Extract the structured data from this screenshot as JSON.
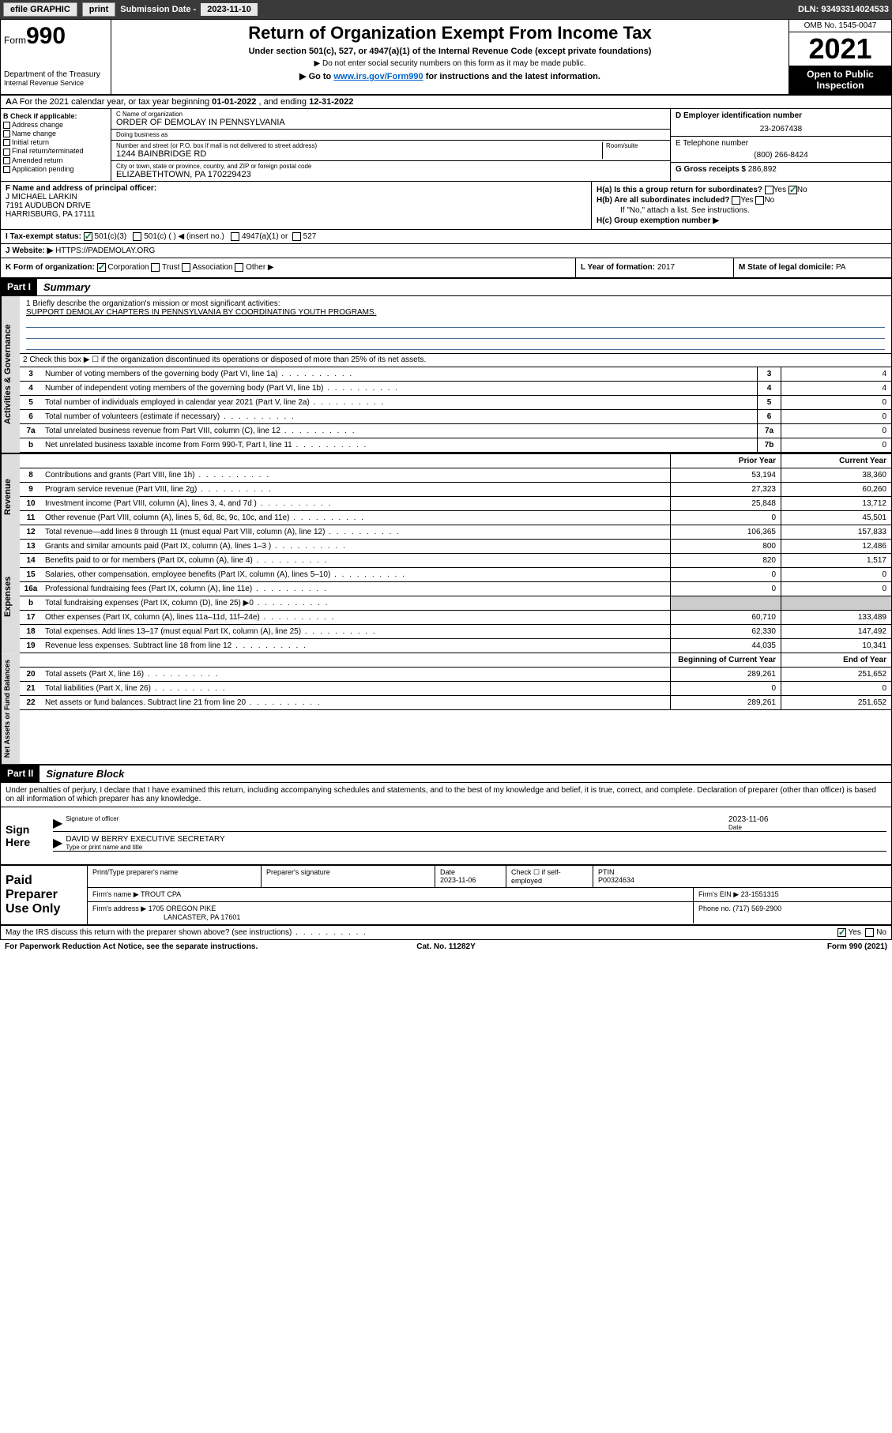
{
  "topbar": {
    "efile": "efile GRAPHIC",
    "print": "print",
    "subdate_label": "Submission Date - ",
    "subdate": "2023-11-10",
    "dln": "DLN: 93493314024533"
  },
  "header": {
    "form_prefix": "Form",
    "form_num": "990",
    "dept": "Department of the Treasury",
    "irs": "Internal Revenue Service",
    "title": "Return of Organization Exempt From Income Tax",
    "subtitle": "Under section 501(c), 527, or 4947(a)(1) of the Internal Revenue Code (except private foundations)",
    "note1": "▶ Do not enter social security numbers on this form as it may be made public.",
    "note2_pre": "▶ Go to ",
    "note2_link": "www.irs.gov/Form990",
    "note2_post": " for instructions and the latest information.",
    "omb": "OMB No. 1545-0047",
    "year": "2021",
    "open": "Open to Public Inspection"
  },
  "row_a": {
    "prefix": "A For the 2021 calendar year, or tax year beginning ",
    "begin": "01-01-2022",
    "mid": " , and ending ",
    "end": "12-31-2022"
  },
  "col_b": {
    "hdr": "B Check if applicable:",
    "items": [
      "Address change",
      "Name change",
      "Initial return",
      "Final return/terminated",
      "Amended return",
      "Application pending"
    ]
  },
  "col_c": {
    "name_label": "C Name of organization",
    "name": "ORDER OF DEMOLAY IN PENNSYLVANIA",
    "dba_label": "Doing business as",
    "dba": "",
    "addr_label": "Number and street (or P.O. box if mail is not delivered to street address)",
    "room_label": "Room/suite",
    "addr": "1244 BAINBRIDGE RD",
    "city_label": "City or town, state or province, country, and ZIP or foreign postal code",
    "city": "ELIZABETHTOWN, PA  170229423"
  },
  "col_de": {
    "d_label": "D Employer identification number",
    "d_val": "23-2067438",
    "e_label": "E Telephone number",
    "e_val": "(800) 266-8424",
    "g_label": "G Gross receipts $ ",
    "g_val": "286,892"
  },
  "col_f": {
    "label": "F Name and address of principal officer:",
    "name": "J MICHAEL LARKIN",
    "addr1": "7191 AUDUBON DRIVE",
    "addr2": "HARRISBURG, PA  17111"
  },
  "col_h": {
    "a_label": "H(a)  Is this a group return for subordinates?",
    "a_yes": "Yes",
    "a_no": "No",
    "b_label": "H(b)  Are all subordinates included?",
    "b_yes": "Yes",
    "b_no": "No",
    "b_note": "If \"No,\" attach a list. See instructions.",
    "c_label": "H(c)  Group exemption number ▶"
  },
  "row_i": {
    "label": "I    Tax-exempt status:",
    "o1": "501(c)(3)",
    "o2": "501(c) (  ) ◀ (insert no.)",
    "o3": "4947(a)(1) or",
    "o4": "527"
  },
  "row_j": {
    "label": "J    Website: ▶ ",
    "val": "HTTPS://PADEMOLAY.ORG"
  },
  "row_k": {
    "label": "K Form of organization:",
    "o1": "Corporation",
    "o2": "Trust",
    "o3": "Association",
    "o4": "Other ▶",
    "l_label": "L Year of formation: ",
    "l_val": "2017",
    "m_label": "M State of legal domicile: ",
    "m_val": "PA"
  },
  "part1": {
    "hdr": "Part I",
    "title": "Summary"
  },
  "mission": {
    "label": "1   Briefly describe the organization's mission or most significant activities:",
    "text": "SUPPORT DEMOLAY CHAPTERS IN PENNSYLVANIA BY COORDINATING YOUTH PROGRAMS."
  },
  "line2": "2   Check this box ▶ ☐  if the organization discontinued its operations or disposed of more than 25% of its net assets.",
  "gov_lines": [
    {
      "n": "3",
      "t": "Number of voting members of the governing body (Part VI, line 1a)",
      "box": "3",
      "v": "4"
    },
    {
      "n": "4",
      "t": "Number of independent voting members of the governing body (Part VI, line 1b)",
      "box": "4",
      "v": "4"
    },
    {
      "n": "5",
      "t": "Total number of individuals employed in calendar year 2021 (Part V, line 2a)",
      "box": "5",
      "v": "0"
    },
    {
      "n": "6",
      "t": "Total number of volunteers (estimate if necessary)",
      "box": "6",
      "v": "0"
    },
    {
      "n": "7a",
      "t": "Total unrelated business revenue from Part VIII, column (C), line 12",
      "box": "7a",
      "v": "0"
    },
    {
      "n": "b",
      "t": "Net unrelated business taxable income from Form 990-T, Part I, line 11",
      "box": "7b",
      "v": "0"
    }
  ],
  "col_hdrs": {
    "prior": "Prior Year",
    "current": "Current Year"
  },
  "rev_lines": [
    {
      "n": "8",
      "t": "Contributions and grants (Part VIII, line 1h)",
      "p": "53,194",
      "c": "38,360"
    },
    {
      "n": "9",
      "t": "Program service revenue (Part VIII, line 2g)",
      "p": "27,323",
      "c": "60,260"
    },
    {
      "n": "10",
      "t": "Investment income (Part VIII, column (A), lines 3, 4, and 7d )",
      "p": "25,848",
      "c": "13,712"
    },
    {
      "n": "11",
      "t": "Other revenue (Part VIII, column (A), lines 5, 6d, 8c, 9c, 10c, and 11e)",
      "p": "0",
      "c": "45,501"
    },
    {
      "n": "12",
      "t": "Total revenue—add lines 8 through 11 (must equal Part VIII, column (A), line 12)",
      "p": "106,365",
      "c": "157,833"
    }
  ],
  "exp_lines": [
    {
      "n": "13",
      "t": "Grants and similar amounts paid (Part IX, column (A), lines 1–3 )",
      "p": "800",
      "c": "12,486"
    },
    {
      "n": "14",
      "t": "Benefits paid to or for members (Part IX, column (A), line 4)",
      "p": "820",
      "c": "1,517"
    },
    {
      "n": "15",
      "t": "Salaries, other compensation, employee benefits (Part IX, column (A), lines 5–10)",
      "p": "0",
      "c": "0"
    },
    {
      "n": "16a",
      "t": "Professional fundraising fees (Part IX, column (A), line 11e)",
      "p": "0",
      "c": "0"
    },
    {
      "n": "b",
      "t": "Total fundraising expenses (Part IX, column (D), line 25) ▶0",
      "p": "",
      "c": "",
      "shade": true
    },
    {
      "n": "17",
      "t": "Other expenses (Part IX, column (A), lines 11a–11d, 11f–24e)",
      "p": "60,710",
      "c": "133,489"
    },
    {
      "n": "18",
      "t": "Total expenses. Add lines 13–17 (must equal Part IX, column (A), line 25)",
      "p": "62,330",
      "c": "147,492"
    },
    {
      "n": "19",
      "t": "Revenue less expenses. Subtract line 18 from line 12",
      "p": "44,035",
      "c": "10,341"
    }
  ],
  "na_hdrs": {
    "begin": "Beginning of Current Year",
    "end": "End of Year"
  },
  "na_lines": [
    {
      "n": "20",
      "t": "Total assets (Part X, line 16)",
      "p": "289,261",
      "c": "251,652"
    },
    {
      "n": "21",
      "t": "Total liabilities (Part X, line 26)",
      "p": "0",
      "c": "0"
    },
    {
      "n": "22",
      "t": "Net assets or fund balances. Subtract line 21 from line 20",
      "p": "289,261",
      "c": "251,652"
    }
  ],
  "tabs": {
    "gov": "Activities & Governance",
    "rev": "Revenue",
    "exp": "Expenses",
    "na": "Net Assets or Fund Balances"
  },
  "part2": {
    "hdr": "Part II",
    "title": "Signature Block"
  },
  "sig_para": "Under penalties of perjury, I declare that I have examined this return, including accompanying schedules and statements, and to the best of my knowledge and belief, it is true, correct, and complete. Declaration of preparer (other than officer) is based on all information of which preparer has any knowledge.",
  "sign": {
    "label": "Sign Here",
    "sig_of": "Signature of officer",
    "date": "2023-11-06",
    "date_l": "Date",
    "name": "DAVID W BERRY  EXECUTIVE SECRETARY",
    "name_l": "Type or print name and title"
  },
  "prep": {
    "label": "Paid Preparer Use Only",
    "h1": "Print/Type preparer's name",
    "h2": "Preparer's signature",
    "h3": "Date",
    "h3v": "2023-11-06",
    "h4": "Check ☐ if self-employed",
    "h5": "PTIN",
    "h5v": "P00324634",
    "firm_l": "Firm's name    ▶ ",
    "firm": "TROUT CPA",
    "ein_l": "Firm's EIN ▶ ",
    "ein": "23-1551315",
    "addr_l": "Firm's address ▶ ",
    "addr1": "1705 OREGON PIKE",
    "addr2": "LANCASTER, PA  17601",
    "phone_l": "Phone no. ",
    "phone": "(717) 569-2900"
  },
  "footer": {
    "discuss": "May the IRS discuss this return with the preparer shown above? (see instructions)",
    "yes": "Yes",
    "no": "No",
    "pra": "For Paperwork Reduction Act Notice, see the separate instructions.",
    "cat": "Cat. No. 11282Y",
    "form": "Form 990 (2021)"
  }
}
